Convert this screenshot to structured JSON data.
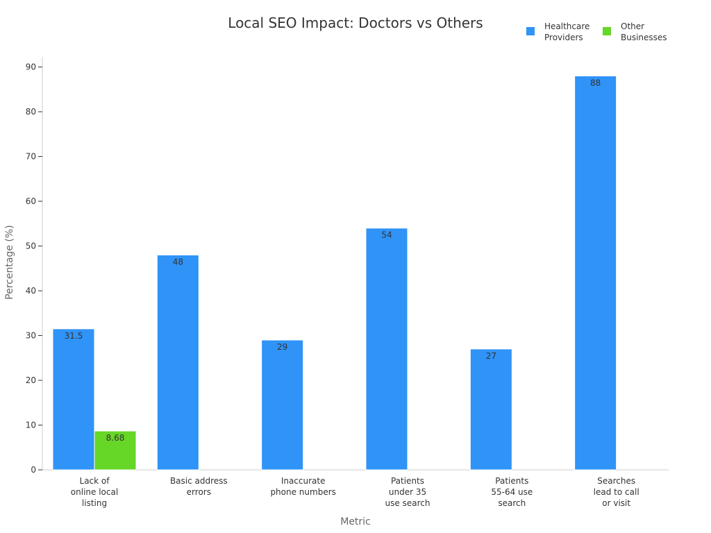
{
  "chart_data": {
    "type": "bar",
    "title": "Local SEO Impact: Doctors vs Others",
    "xlabel": "Metric",
    "ylabel": "Percentage (%)",
    "ylim": [
      0,
      90
    ],
    "yticks": [
      0,
      10,
      20,
      30,
      40,
      50,
      60,
      70,
      80,
      90
    ],
    "grid": false,
    "legend_position": "top-right",
    "categories": [
      [
        "Lack of",
        "online local",
        "listing"
      ],
      [
        "Basic address",
        "errors"
      ],
      [
        "Inaccurate",
        "phone numbers"
      ],
      [
        "Patients",
        "under 35",
        "use search"
      ],
      [
        "Patients",
        "55-64 use",
        "search"
      ],
      [
        "Searches",
        "lead to call",
        "or visit"
      ]
    ],
    "series": [
      {
        "name": [
          "Healthcare",
          "Providers"
        ],
        "color": "#2f93f7",
        "values": [
          31.5,
          48,
          29,
          54,
          27,
          88
        ],
        "labels": [
          "31.5",
          "48",
          "29",
          "54",
          "27",
          "88"
        ]
      },
      {
        "name": [
          "Other",
          "Businesses"
        ],
        "color": "#66d627",
        "values": [
          8.68,
          null,
          null,
          null,
          null,
          null
        ],
        "labels": [
          "8.68",
          null,
          null,
          null,
          null,
          null
        ]
      }
    ]
  }
}
